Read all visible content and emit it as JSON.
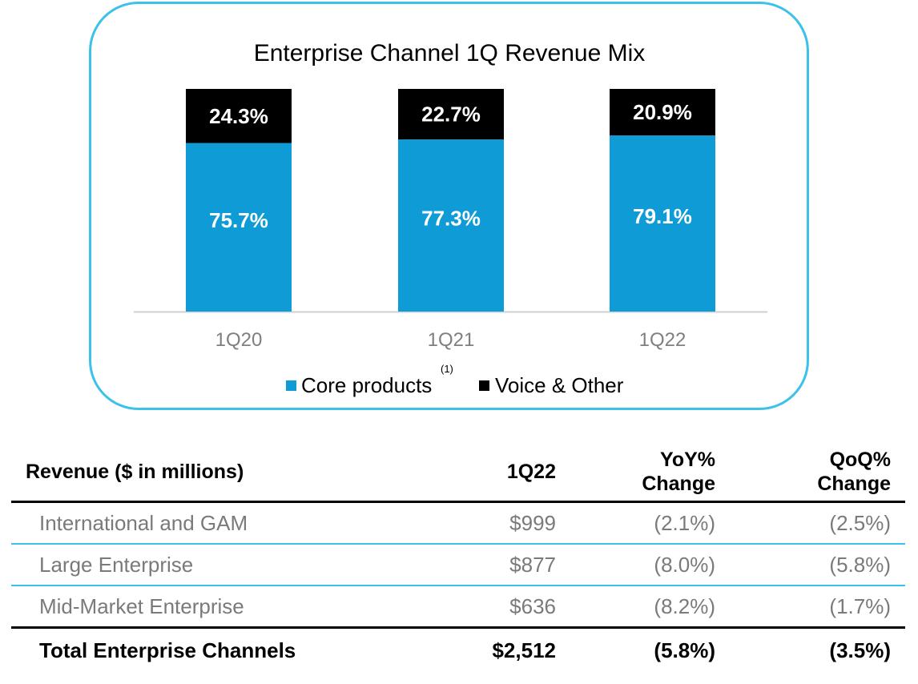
{
  "chart_data": {
    "type": "bar",
    "stacked": true,
    "title": "Enterprise Channel 1Q Revenue Mix",
    "categories": [
      "1Q20",
      "1Q21",
      "1Q22"
    ],
    "series": [
      {
        "name": "Core products",
        "values": [
          75.7,
          77.3,
          79.1
        ],
        "labels": [
          "75.7%",
          "77.3%",
          "79.1%"
        ],
        "color": "#0e9bd6"
      },
      {
        "name": "Voice & Other",
        "values": [
          24.3,
          22.7,
          20.9
        ],
        "labels": [
          "24.3%",
          "22.7%",
          "20.9%"
        ],
        "color": "#000000"
      }
    ],
    "legend": {
      "position": "bottom",
      "items": [
        "Core products",
        "Voice & Other"
      ],
      "footnote": "(1)"
    },
    "ylim": [
      0,
      100
    ],
    "xlabel": "",
    "ylabel": ""
  },
  "colors": {
    "frame": "#3cc1ea",
    "core": "#0e9bd6",
    "voice": "#000000",
    "axis": "#d0d0d0",
    "tick_text": "#7f7f7f",
    "row_rule": "#3cc1ea"
  },
  "table": {
    "headers": {
      "label": "Revenue ($ in millions)",
      "period": "1Q22",
      "yoy_line1": "YoY%",
      "yoy_line2": "Change",
      "qoq_line1": "QoQ%",
      "qoq_line2": "Change"
    },
    "rows": [
      {
        "label": "International and GAM",
        "value": "$999",
        "yoy": "(2.1%)",
        "qoq": "(2.5%)"
      },
      {
        "label": "Large Enterprise",
        "value": "$877",
        "yoy": "(8.0%)",
        "qoq": "(5.8%)"
      },
      {
        "label": "Mid-Market Enterprise",
        "value": "$636",
        "yoy": "(8.2%)",
        "qoq": "(1.7%)"
      }
    ],
    "total": {
      "label": "Total Enterprise Channels",
      "value": "$2,512",
      "yoy": "(5.8%)",
      "qoq": "(3.5%)"
    }
  }
}
